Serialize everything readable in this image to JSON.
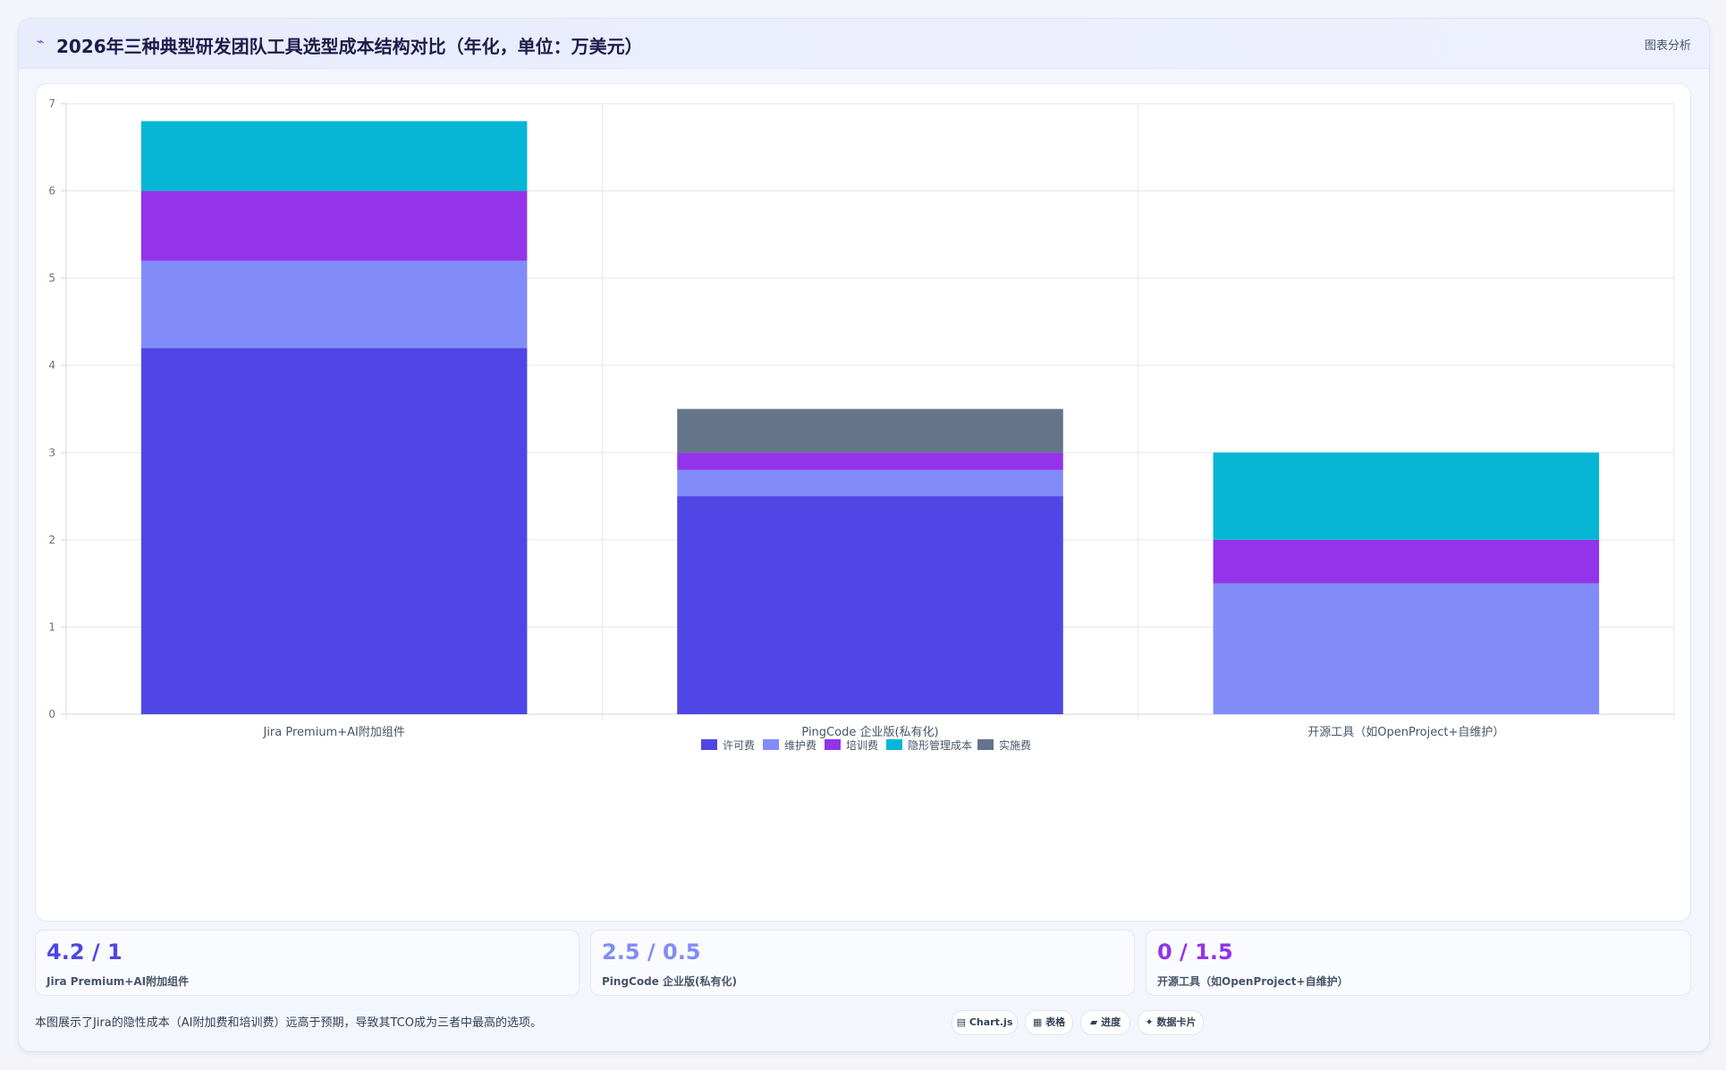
{
  "header": {
    "icon": "chart-icon",
    "title": "2026年三种典型研发团队工具选型成本结构对比（年化，单位：万美元）",
    "right_label": "图表分析"
  },
  "chart_data": {
    "type": "bar",
    "stacked": true,
    "title": "",
    "xlabel": "",
    "ylabel": "",
    "ylim": [
      0,
      7
    ],
    "yticks": [
      0,
      1,
      2,
      3,
      4,
      5,
      6,
      7
    ],
    "grid": true,
    "legend_position": "bottom",
    "categories": [
      "Jira Premium+AI附加组件",
      "PingCode 企业版(私有化)",
      "开源工具（如OpenProject+自维护）"
    ],
    "series": [
      {
        "name": "许可费",
        "color": "#4f46e5",
        "values": [
          4.2,
          2.5,
          0
        ]
      },
      {
        "name": "维护费",
        "color": "#818cf8",
        "values": [
          1.0,
          0.3,
          1.5
        ]
      },
      {
        "name": "培训费",
        "color": "#9333ea",
        "values": [
          0.8,
          0.2,
          0.5
        ]
      },
      {
        "name": "隐形管理成本",
        "color": "#06b6d4",
        "values": [
          0.8,
          0,
          1.0
        ]
      },
      {
        "name": "实施费",
        "color": "#64748b",
        "values": [
          0,
          0.5,
          0
        ]
      }
    ]
  },
  "stats": [
    {
      "value": "4.2 / 1",
      "label": "Jira Premium+AI附加组件",
      "color": "#4f46e5"
    },
    {
      "value": "2.5 / 0.5",
      "label": "PingCode 企业版(私有化)",
      "color": "#818cf8"
    },
    {
      "value": "0 / 1.5",
      "label": "开源工具（如OpenProject+自维护）",
      "color": "#9333ea"
    }
  ],
  "footnote": "本图展示了Jira的隐性成本（AI附加费和培训费）远高于预期，导致其TCO成为三者中最高的选项。",
  "pills": [
    {
      "icon": "chart-icon",
      "label": "Chart.js"
    },
    {
      "icon": "table-icon",
      "label": "表格"
    },
    {
      "icon": "progress-icon",
      "label": "进度"
    },
    {
      "icon": "sparkle-icon",
      "label": "数据卡片"
    }
  ]
}
